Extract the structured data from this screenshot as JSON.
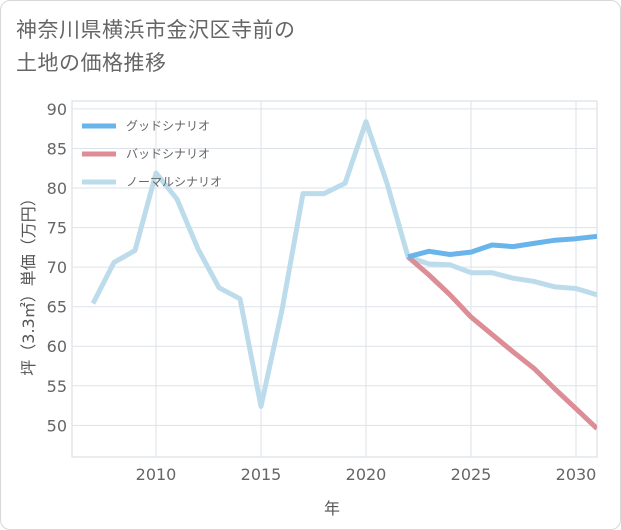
{
  "title_lines": [
    "神奈川県横浜市金沢区寺前の",
    "土地の価格推移"
  ],
  "chart_data": {
    "type": "line",
    "xlabel": "年",
    "ylabel": "坪（3.3㎡）単価（万円）",
    "xlim": [
      2006,
      2031
    ],
    "ylim": [
      46,
      91
    ],
    "x_ticks": [
      2010,
      2015,
      2020,
      2025,
      2030
    ],
    "y_ticks": [
      50,
      55,
      60,
      65,
      70,
      75,
      80,
      85,
      90
    ],
    "grid": true,
    "legend_position": "top-left",
    "series": [
      {
        "name": "グッドシナリオ",
        "color": "#6ab4ec",
        "x": [
          2022,
          2023,
          2024,
          2025,
          2026,
          2027,
          2028,
          2029,
          2030,
          2031
        ],
        "y": [
          71.3,
          72.0,
          71.6,
          71.9,
          72.8,
          72.6,
          73.0,
          73.4,
          73.6,
          73.9
        ]
      },
      {
        "name": "バッドシナリオ",
        "color": "#dd8d95",
        "x": [
          2022,
          2023,
          2024,
          2025,
          2026,
          2027,
          2028,
          2029,
          2030,
          2031
        ],
        "y": [
          71.3,
          69.0,
          66.5,
          63.7,
          61.5,
          59.3,
          57.2,
          54.6,
          52.1,
          49.6
        ]
      },
      {
        "name": "ノーマルシナリオ",
        "color": "#bcdcec",
        "x": [
          2007,
          2008,
          2009,
          2010,
          2011,
          2012,
          2013,
          2014,
          2015,
          2016,
          2017,
          2018,
          2019,
          2020,
          2021,
          2022,
          2023,
          2024,
          2025,
          2026,
          2027,
          2028,
          2029,
          2030,
          2031
        ],
        "y": [
          65.4,
          70.6,
          72.1,
          81.9,
          78.6,
          72.3,
          67.4,
          66.0,
          52.4,
          64.6,
          79.3,
          79.3,
          80.6,
          88.4,
          80.6,
          71.3,
          70.4,
          70.3,
          69.3,
          69.3,
          68.6,
          68.2,
          67.5,
          67.3,
          66.5
        ]
      }
    ]
  }
}
